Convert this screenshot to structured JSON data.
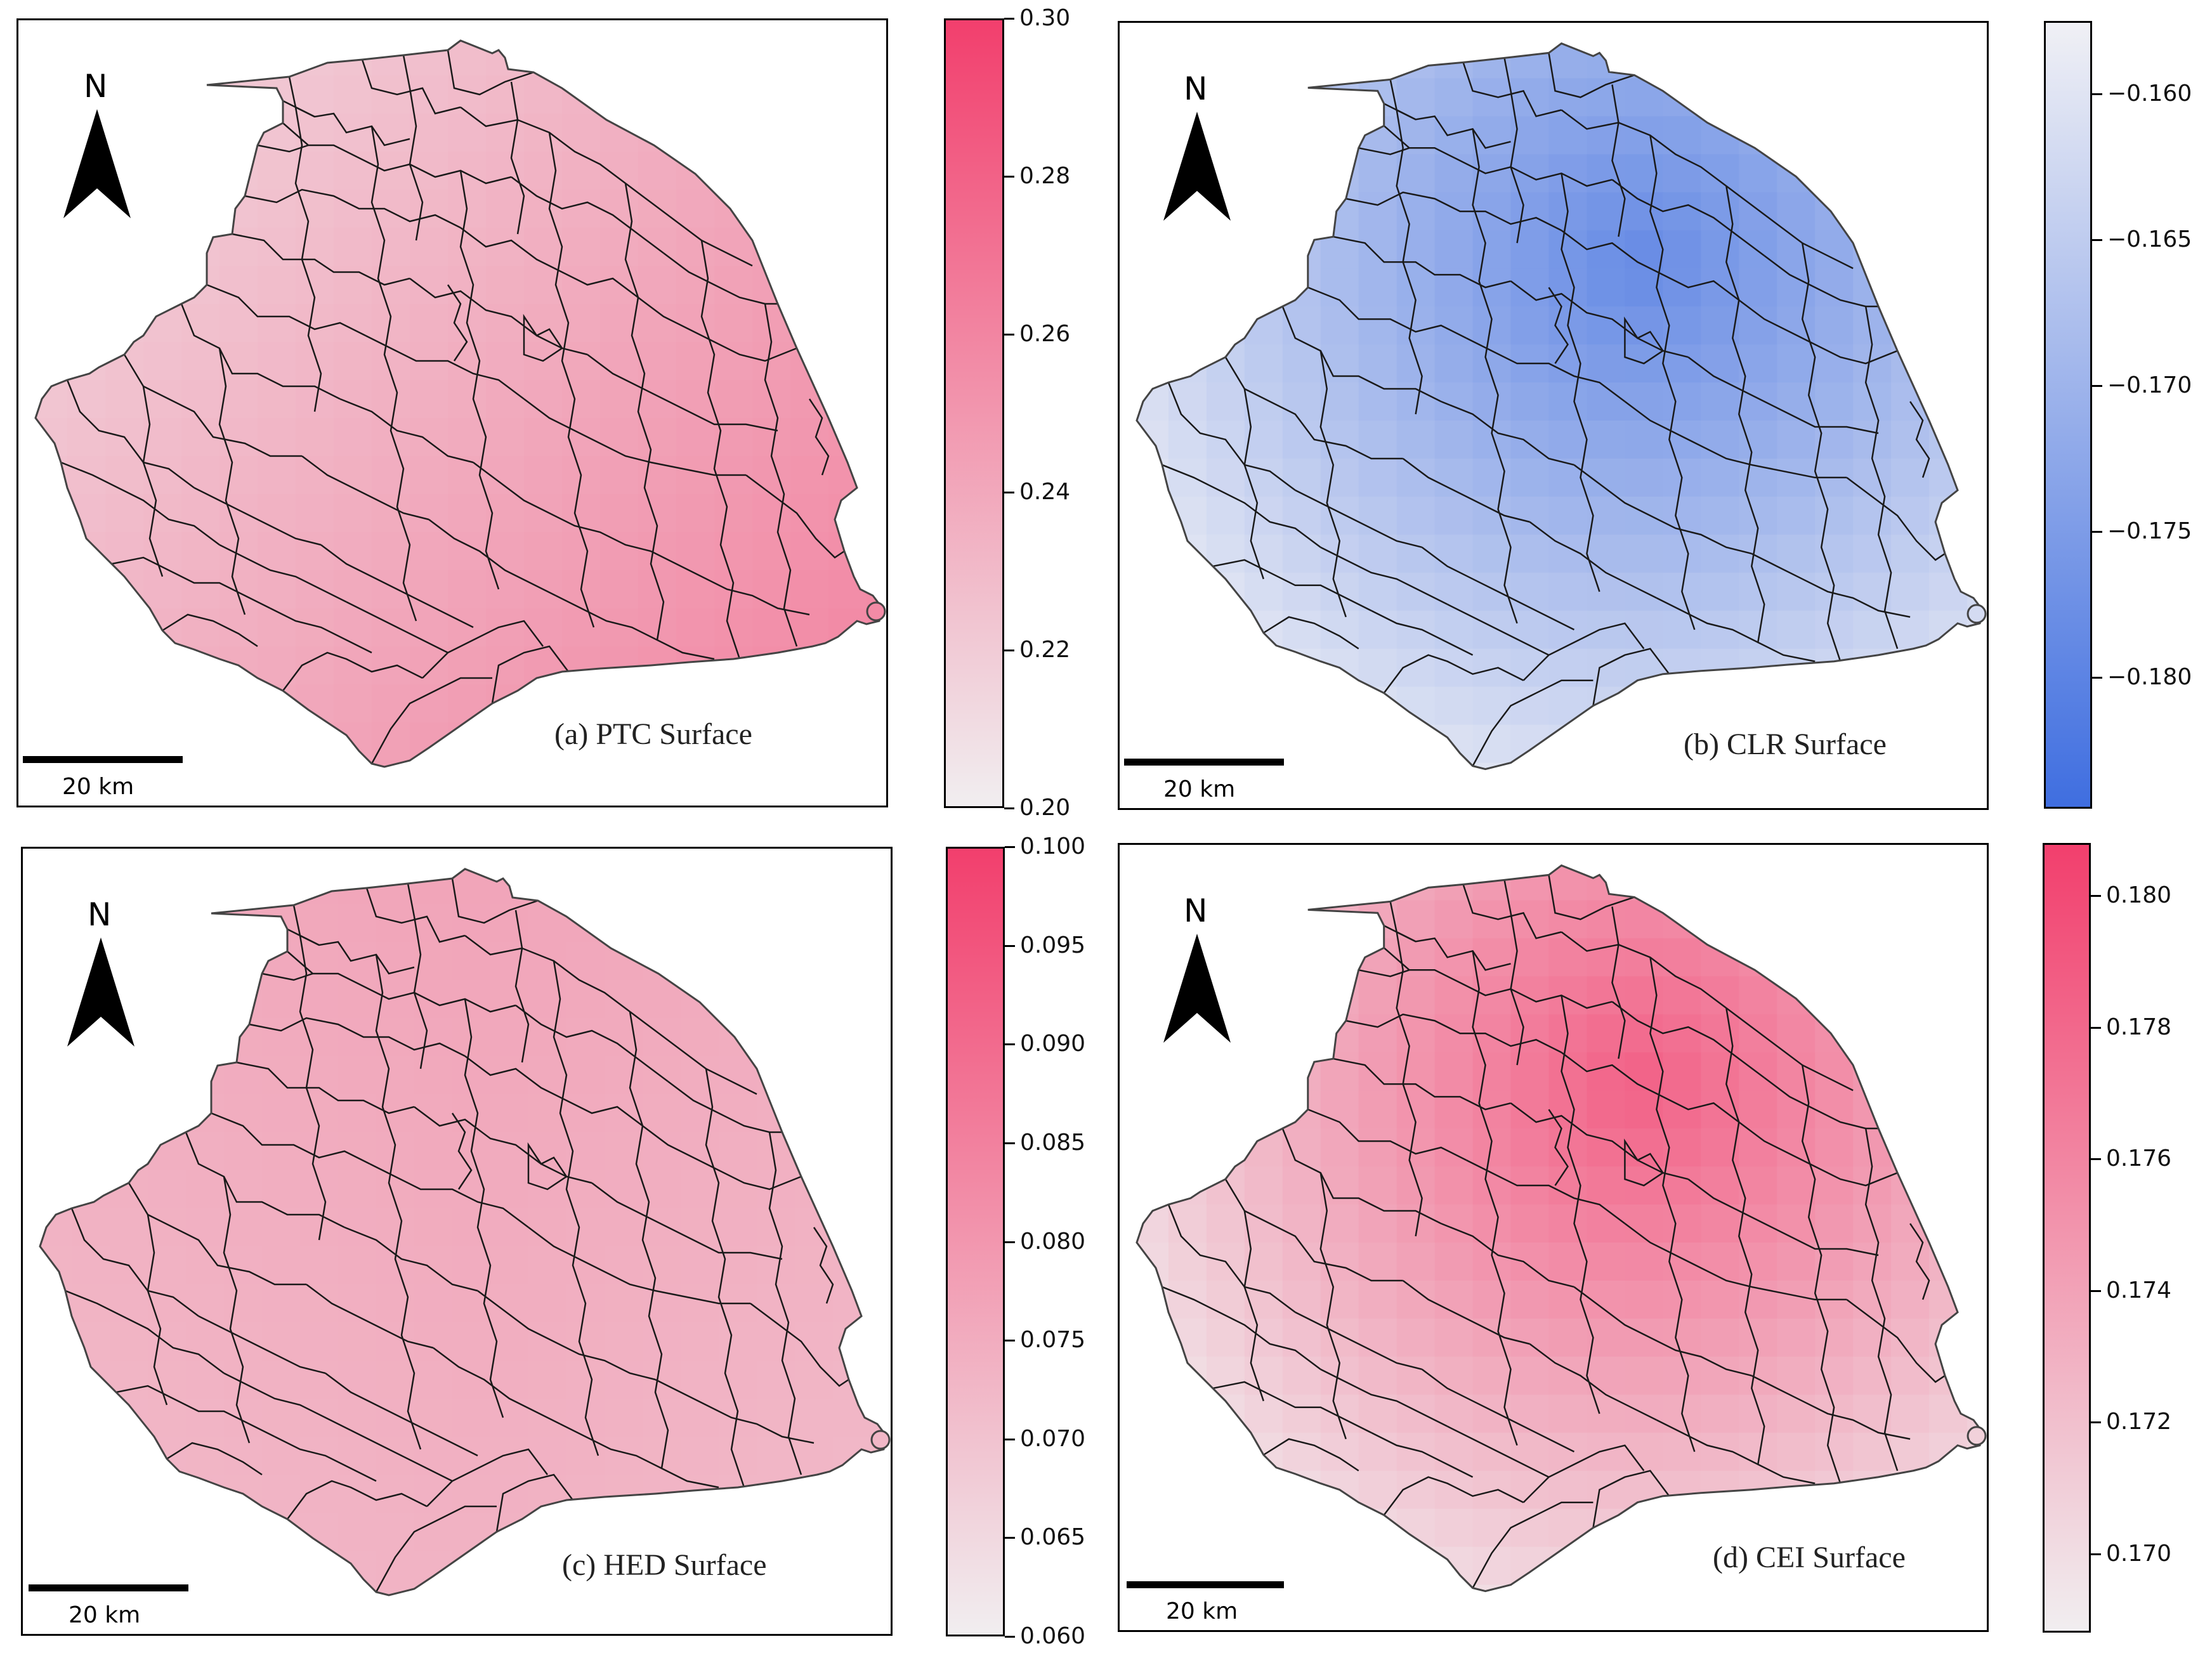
{
  "north_label": "N",
  "scale_label": "20 km",
  "panels": [
    {
      "id": "a",
      "caption": "(a) PTC Surface",
      "colormap": {
        "low": "#f1eef0",
        "high": "#f23f6d"
      },
      "range": [
        0.2,
        0.3
      ],
      "ticks": [
        "0.30",
        "0.28",
        "0.26",
        "0.24",
        "0.22",
        "0.20"
      ],
      "tick_values": [
        0.3,
        0.28,
        0.26,
        0.24,
        0.22,
        0.2
      ],
      "pattern": "gradient toward south-east coast",
      "min_value": 0.212,
      "max_value": 0.262
    },
    {
      "id": "b",
      "caption": "(b) CLR Surface",
      "colormap": {
        "low": "#3f6ee0",
        "high": "#f0f0f5"
      },
      "range": [
        -0.1845,
        -0.1575
      ],
      "ticks": [
        "−0.160",
        "−0.165",
        "−0.170",
        "−0.175",
        "−0.180"
      ],
      "tick_values": [
        -0.16,
        -0.165,
        -0.17,
        -0.175,
        -0.18
      ],
      "pattern": "low in north-centre, high toward south-east",
      "min_value": -0.1785,
      "max_value": -0.159
    },
    {
      "id": "c",
      "caption": "(c) HED Surface",
      "colormap": {
        "low": "#f1eef0",
        "high": "#f23f6d"
      },
      "range": [
        0.06,
        0.1
      ],
      "ticks": [
        "0.100",
        "0.095",
        "0.090",
        "0.085",
        "0.080",
        "0.075",
        "0.070",
        "0.065",
        "0.060"
      ],
      "tick_values": [
        0.1,
        0.095,
        0.09,
        0.085,
        0.08,
        0.075,
        0.07,
        0.065,
        0.06
      ],
      "pattern": "fairly uniform, slightly higher in north",
      "min_value": 0.07,
      "max_value": 0.077
    },
    {
      "id": "d",
      "caption": "(d) CEI Surface",
      "colormap": {
        "low": "#f1eef0",
        "high": "#f23f6d"
      },
      "range": [
        0.1688,
        0.1808
      ],
      "ticks": [
        "0.180",
        "0.178",
        "0.176",
        "0.174",
        "0.172",
        "0.170"
      ],
      "tick_values": [
        0.18,
        0.178,
        0.176,
        0.174,
        0.172,
        0.17
      ],
      "pattern": "high in north-centre, low toward south-east",
      "min_value": 0.1695,
      "max_value": 0.1785
    }
  ]
}
